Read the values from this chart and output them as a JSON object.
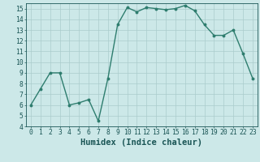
{
  "x": [
    0,
    1,
    2,
    3,
    4,
    5,
    6,
    7,
    8,
    9,
    10,
    11,
    12,
    13,
    14,
    15,
    16,
    17,
    18,
    19,
    20,
    21,
    22,
    23
  ],
  "y": [
    6,
    7.5,
    9,
    9,
    6,
    6.2,
    6.5,
    4.5,
    8.5,
    13.5,
    15.1,
    14.7,
    15.1,
    15.0,
    14.9,
    15.0,
    15.3,
    14.8,
    13.5,
    12.5,
    12.5,
    13.0,
    10.8,
    8.5
  ],
  "line_color": "#2e7d6e",
  "marker": "o",
  "marker_size": 1.8,
  "line_width": 1.0,
  "background_color": "#cce8e8",
  "grid_color": "#aacccc",
  "xlabel": "Humidex (Indice chaleur)",
  "ylim": [
    4,
    15.5
  ],
  "xlim": [
    -0.5,
    23.5
  ],
  "yticks": [
    4,
    5,
    6,
    7,
    8,
    9,
    10,
    11,
    12,
    13,
    14,
    15
  ],
  "xticks": [
    0,
    1,
    2,
    3,
    4,
    5,
    6,
    7,
    8,
    9,
    10,
    11,
    12,
    13,
    14,
    15,
    16,
    17,
    18,
    19,
    20,
    21,
    22,
    23
  ],
  "tick_color": "#1a5555",
  "label_color": "#1a5555",
  "xlabel_fontsize": 7.5,
  "tick_fontsize": 5.8
}
